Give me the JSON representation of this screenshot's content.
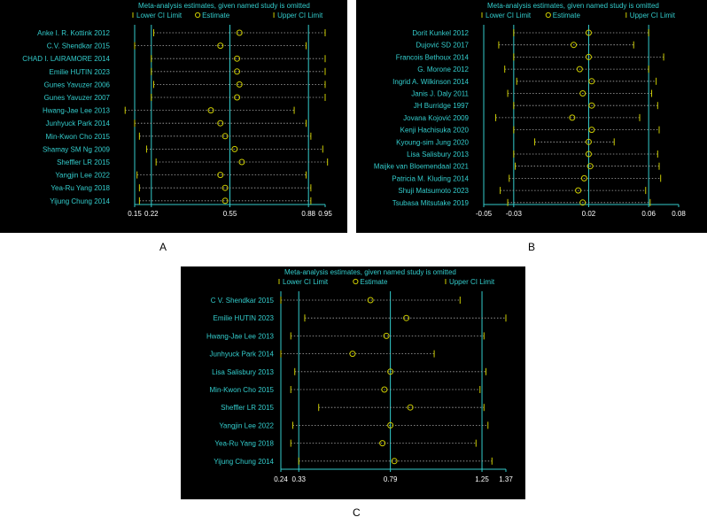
{
  "colors": {
    "background": "#000000",
    "cyan": "#33cccc",
    "estimate": "#cccc00",
    "ci": "#cccc00",
    "axis_text": "#ffffff"
  },
  "chart_data": [
    {
      "id": "A",
      "type": "forest",
      "panel_label": "A",
      "title": "Meta-analysis estimates, given named study is omitted",
      "legend": [
        "Lower CI Limit",
        "Estimate",
        "Upper CI Limit"
      ],
      "xlim": [
        0.15,
        0.95
      ],
      "ticks": [
        0.15,
        0.22,
        0.55,
        0.88,
        0.95
      ],
      "tick_labels": [
        "0.15",
        "0.22",
        "0.55",
        "0.88",
        "0.95"
      ],
      "ref_lines": [
        0.22,
        0.55,
        0.88
      ],
      "studies": [
        {
          "name": "Anke I. R. Kottink 2012",
          "lower": 0.23,
          "est": 0.59,
          "upper": 0.95
        },
        {
          "name": "C.V. Shendkar 2015",
          "lower": 0.15,
          "est": 0.51,
          "upper": 0.87
        },
        {
          "name": "CHAD I. LAIRAMORE 2014",
          "lower": 0.22,
          "est": 0.58,
          "upper": 0.95
        },
        {
          "name": "Emilie HUTIN 2023",
          "lower": 0.22,
          "est": 0.58,
          "upper": 0.95
        },
        {
          "name": "Gunes Yavuzer 2006",
          "lower": 0.23,
          "est": 0.59,
          "upper": 0.95
        },
        {
          "name": "Gunes Yavuzer 2007",
          "lower": 0.22,
          "est": 0.58,
          "upper": 0.95
        },
        {
          "name": "Hwang-Jae Lee 2013",
          "lower": 0.11,
          "est": 0.47,
          "upper": 0.82
        },
        {
          "name": "Junhyuck Park 2014",
          "lower": 0.15,
          "est": 0.51,
          "upper": 0.87
        },
        {
          "name": "Min-Kwon Cho 2015",
          "lower": 0.17,
          "est": 0.53,
          "upper": 0.89
        },
        {
          "name": "Shamay SM Ng 2009",
          "lower": 0.2,
          "est": 0.57,
          "upper": 0.94
        },
        {
          "name": "Sheffler LR 2015",
          "lower": 0.24,
          "est": 0.6,
          "upper": 0.96
        },
        {
          "name": "Yangjin Lee 2022",
          "lower": 0.16,
          "est": 0.51,
          "upper": 0.87
        },
        {
          "name": "Yea-Ru Yang 2018",
          "lower": 0.17,
          "est": 0.53,
          "upper": 0.89
        },
        {
          "name": "Yijung Chung 2014",
          "lower": 0.17,
          "est": 0.53,
          "upper": 0.89
        }
      ]
    },
    {
      "id": "B",
      "type": "forest",
      "panel_label": "B",
      "title": "Meta-analysis estimates, given named study is omitted",
      "legend": [
        "Lower CI Limit",
        "Estimate",
        "Upper CI Limit"
      ],
      "xlim": [
        -0.05,
        0.08
      ],
      "ticks": [
        -0.05,
        -0.03,
        0.02,
        0.06,
        0.08
      ],
      "tick_labels": [
        "-0.05",
        "-0.03",
        "0.02",
        "0.06",
        "0.08"
      ],
      "ref_lines": [
        -0.03,
        0.02,
        0.06
      ],
      "studies": [
        {
          "name": "Dorit Kunkel 2012",
          "lower": -0.03,
          "est": 0.02,
          "upper": 0.06
        },
        {
          "name": "Dujović SD 2017",
          "lower": -0.04,
          "est": 0.01,
          "upper": 0.05
        },
        {
          "name": "Francois Bethoux 2014",
          "lower": -0.03,
          "est": 0.02,
          "upper": 0.07
        },
        {
          "name": "G. Morone 2012",
          "lower": -0.036,
          "est": 0.014,
          "upper": 0.06
        },
        {
          "name": "Ingrid A. Wilkinson 2014",
          "lower": -0.028,
          "est": 0.022,
          "upper": 0.065
        },
        {
          "name": "Janis J. Daly 2011",
          "lower": -0.034,
          "est": 0.016,
          "upper": 0.062
        },
        {
          "name": "JH Burridge 1997",
          "lower": -0.03,
          "est": 0.022,
          "upper": 0.066
        },
        {
          "name": "Jovana Kojović 2009",
          "lower": -0.042,
          "est": 0.009,
          "upper": 0.054
        },
        {
          "name": "Kenji Hachisuka 2020",
          "lower": -0.03,
          "est": 0.022,
          "upper": 0.067
        },
        {
          "name": "Kyoung-sim Jung 2020",
          "lower": -0.016,
          "est": 0.02,
          "upper": 0.037
        },
        {
          "name": "Lisa Salisbury 2013",
          "lower": -0.03,
          "est": 0.02,
          "upper": 0.066
        },
        {
          "name": "Maijke van Bloemendaal 2021",
          "lower": -0.029,
          "est": 0.021,
          "upper": 0.067
        },
        {
          "name": "Patricia M. Kluding 2014",
          "lower": -0.033,
          "est": 0.017,
          "upper": 0.068
        },
        {
          "name": "Shuji Matsumoto 2023",
          "lower": -0.039,
          "est": 0.013,
          "upper": 0.058
        },
        {
          "name": "Tsubasa Mitsutake 2019",
          "lower": -0.034,
          "est": 0.016,
          "upper": 0.061
        }
      ]
    },
    {
      "id": "C",
      "type": "forest",
      "panel_label": "C",
      "title": "Meta-analysis estimates, given named study is omitted",
      "legend": [
        "Lower CI Limit",
        "Estimate",
        "Upper CI Limit"
      ],
      "xlim": [
        0.24,
        1.37
      ],
      "ticks": [
        0.24,
        0.33,
        0.79,
        1.25,
        1.37
      ],
      "tick_labels": [
        "0.24",
        "0.33",
        "0.79",
        "1.25",
        "1.37"
      ],
      "ref_lines": [
        0.33,
        0.79,
        1.25
      ],
      "studies": [
        {
          "name": "C V. Shendkar 2015",
          "lower": 0.24,
          "est": 0.69,
          "upper": 1.14
        },
        {
          "name": "Emilie HUTIN 2023",
          "lower": 0.36,
          "est": 0.87,
          "upper": 1.37
        },
        {
          "name": "Hwang-Jae Lee 2013",
          "lower": 0.29,
          "est": 0.77,
          "upper": 1.26
        },
        {
          "name": "Junhyuck Park 2014",
          "lower": 0.24,
          "est": 0.6,
          "upper": 1.01
        },
        {
          "name": "Lisa Salisbury 2013",
          "lower": 0.31,
          "est": 0.79,
          "upper": 1.27
        },
        {
          "name": "Min-Kwon Cho 2015",
          "lower": 0.29,
          "est": 0.76,
          "upper": 1.24
        },
        {
          "name": "Sheffler LR 2015",
          "lower": 0.43,
          "est": 0.89,
          "upper": 1.26
        },
        {
          "name": "Yangjin Lee 2022",
          "lower": 0.3,
          "est": 0.79,
          "upper": 1.28
        },
        {
          "name": "Yea-Ru Yang 2018",
          "lower": 0.29,
          "est": 0.75,
          "upper": 1.22
        },
        {
          "name": "Yijung Chung 2014",
          "lower": 0.33,
          "est": 0.81,
          "upper": 1.3
        }
      ]
    }
  ]
}
